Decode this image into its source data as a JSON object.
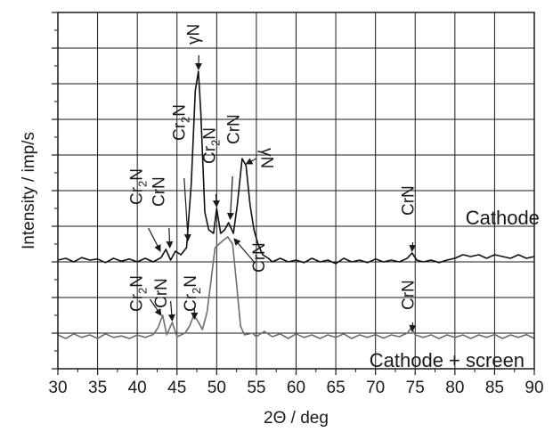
{
  "chart_data": {
    "type": "line",
    "xlabel": "2Θ / deg",
    "ylabel": "Intensity / imp/s",
    "xlim": [
      30,
      90
    ],
    "ylim": [
      0,
      10
    ],
    "x_ticks": [
      "30",
      "35",
      "40",
      "45",
      "50",
      "55",
      "60",
      "65",
      "70",
      "75",
      "80",
      "85",
      "90"
    ],
    "grid": true,
    "y_tick_labels_shown": false,
    "series": [
      {
        "name": "Cathode",
        "color": "#111111",
        "label_at": [
          86,
          4.05
        ],
        "points": [
          [
            30,
            3.05
          ],
          [
            31,
            3.1
          ],
          [
            32,
            3.0
          ],
          [
            33,
            3.12
          ],
          [
            34,
            3.05
          ],
          [
            35,
            3.08
          ],
          [
            36,
            2.98
          ],
          [
            37,
            3.1
          ],
          [
            38,
            3.02
          ],
          [
            39,
            3.08
          ],
          [
            40,
            3.0
          ],
          [
            41,
            3.1
          ],
          [
            42,
            3.0
          ],
          [
            43,
            3.12
          ],
          [
            43.6,
            3.35
          ],
          [
            44.2,
            3.05
          ],
          [
            44.8,
            3.3
          ],
          [
            45.5,
            3.2
          ],
          [
            46.2,
            3.4
          ],
          [
            46.8,
            5.2
          ],
          [
            47.3,
            7.8
          ],
          [
            47.7,
            8.35
          ],
          [
            48.0,
            7.2
          ],
          [
            48.5,
            4.4
          ],
          [
            49.0,
            3.9
          ],
          [
            49.6,
            3.8
          ],
          [
            50.0,
            4.5
          ],
          [
            50.5,
            3.8
          ],
          [
            51.0,
            3.9
          ],
          [
            51.5,
            4.1
          ],
          [
            52.1,
            3.8
          ],
          [
            52.6,
            4.6
          ],
          [
            53.2,
            5.9
          ],
          [
            53.7,
            5.7
          ],
          [
            54.2,
            4.6
          ],
          [
            54.7,
            3.9
          ],
          [
            55.2,
            3.5
          ],
          [
            55.8,
            3.2
          ],
          [
            56.5,
            3.1
          ],
          [
            57,
            3.0
          ],
          [
            58,
            3.1
          ],
          [
            59,
            3.0
          ],
          [
            60,
            3.05
          ],
          [
            61,
            2.98
          ],
          [
            62,
            3.1
          ],
          [
            63,
            3.0
          ],
          [
            64,
            3.05
          ],
          [
            65,
            2.95
          ],
          [
            66,
            3.1
          ],
          [
            67,
            3.0
          ],
          [
            68,
            3.05
          ],
          [
            69,
            2.98
          ],
          [
            70,
            3.08
          ],
          [
            71,
            3.0
          ],
          [
            72,
            3.05
          ],
          [
            73,
            3.0
          ],
          [
            74,
            3.1
          ],
          [
            74.6,
            3.25
          ],
          [
            75.2,
            3.05
          ],
          [
            76,
            3.0
          ],
          [
            77,
            3.05
          ],
          [
            78,
            2.98
          ],
          [
            79,
            3.05
          ],
          [
            80,
            3.1
          ],
          [
            81,
            3.2
          ],
          [
            82,
            3.15
          ],
          [
            83,
            3.2
          ],
          [
            84,
            3.1
          ],
          [
            85,
            3.2
          ],
          [
            86,
            3.15
          ],
          [
            87,
            3.1
          ],
          [
            88,
            3.2
          ],
          [
            89,
            3.1
          ],
          [
            90,
            3.15
          ]
        ]
      },
      {
        "name": "Cathode + screen",
        "color": "#6e6e6e",
        "label_at": [
          79,
          0.05
        ],
        "points": [
          [
            30,
            0.95
          ],
          [
            31,
            0.85
          ],
          [
            32,
            0.98
          ],
          [
            33,
            0.88
          ],
          [
            34,
            0.95
          ],
          [
            35,
            0.85
          ],
          [
            36,
            0.98
          ],
          [
            37,
            0.88
          ],
          [
            38,
            0.92
          ],
          [
            39,
            0.85
          ],
          [
            40,
            0.95
          ],
          [
            41,
            0.88
          ],
          [
            42,
            0.96
          ],
          [
            42.6,
            1.15
          ],
          [
            43.2,
            1.5
          ],
          [
            43.7,
            0.95
          ],
          [
            44.4,
            1.3
          ],
          [
            45.0,
            0.9
          ],
          [
            46.0,
            1.0
          ],
          [
            46.6,
            1.2
          ],
          [
            47.1,
            1.5
          ],
          [
            47.6,
            1.35
          ],
          [
            48.2,
            1.1
          ],
          [
            48.8,
            1.6
          ],
          [
            49.3,
            2.5
          ],
          [
            49.8,
            3.4
          ],
          [
            50.3,
            3.5
          ],
          [
            50.8,
            3.6
          ],
          [
            51.4,
            3.7
          ],
          [
            52.0,
            3.5
          ],
          [
            52.5,
            2.4
          ],
          [
            53.0,
            1.2
          ],
          [
            53.5,
            0.95
          ],
          [
            54.5,
            1.0
          ],
          [
            55,
            0.9
          ],
          [
            56,
            1.05
          ],
          [
            57,
            0.9
          ],
          [
            58,
            0.98
          ],
          [
            59,
            0.85
          ],
          [
            60,
            0.98
          ],
          [
            61,
            0.88
          ],
          [
            62,
            0.95
          ],
          [
            63,
            0.85
          ],
          [
            64,
            0.95
          ],
          [
            65,
            0.88
          ],
          [
            66,
            0.98
          ],
          [
            67,
            0.85
          ],
          [
            68,
            0.95
          ],
          [
            69,
            0.88
          ],
          [
            70,
            0.96
          ],
          [
            71,
            0.86
          ],
          [
            72,
            0.95
          ],
          [
            73,
            0.9
          ],
          [
            74,
            1.0
          ],
          [
            74.5,
            1.15
          ],
          [
            75.0,
            0.95
          ],
          [
            76,
            0.88
          ],
          [
            77,
            0.95
          ],
          [
            78,
            0.85
          ],
          [
            79,
            0.95
          ],
          [
            80,
            0.88
          ],
          [
            81,
            0.95
          ],
          [
            82,
            0.85
          ],
          [
            83,
            0.95
          ],
          [
            84,
            0.88
          ],
          [
            85,
            0.96
          ],
          [
            86,
            0.85
          ],
          [
            87,
            0.95
          ],
          [
            88,
            0.88
          ],
          [
            89,
            0.96
          ],
          [
            90,
            0.85
          ]
        ]
      }
    ],
    "annotations": [
      {
        "label": "Cr₂N",
        "main": "Cr",
        "sub": "2",
        "tail": "N",
        "text_at": [
          40.6,
          4.6
        ],
        "arrow_from": [
          41.4,
          3.95
        ],
        "arrow_to": [
          42.9,
          3.3
        ],
        "rotate": true
      },
      {
        "label": "CrN",
        "main": "CrN",
        "text_at": [
          43.4,
          4.55
        ],
        "arrow_from": [
          44.0,
          3.95
        ],
        "arrow_to": [
          44.1,
          3.4
        ],
        "rotate": true
      },
      {
        "label": "Cr₂N",
        "main": "Cr",
        "sub": "2",
        "tail": "N",
        "text_at": [
          46.0,
          6.4
        ],
        "arrow_from": [
          45.9,
          5.35
        ],
        "arrow_to": [
          46.4,
          3.6
        ],
        "rotate": true
      },
      {
        "label": "γN",
        "main": "γN",
        "text_at": [
          47.8,
          9.1
        ],
        "arrow_from": [
          47.75,
          8.8
        ],
        "arrow_to": [
          47.7,
          8.4
        ],
        "rotate": true
      },
      {
        "label": "Cr₂N",
        "main": "Cr",
        "sub": "2",
        "tail": "N",
        "text_at": [
          49.8,
          5.75
        ],
        "arrow_from": [
          49.9,
          4.9
        ],
        "arrow_to": [
          50.0,
          4.55
        ],
        "rotate": true
      },
      {
        "label": "CrN",
        "main": "CrN",
        "text_at": [
          52.8,
          6.3
        ],
        "arrow_from": [
          52.0,
          5.4
        ],
        "arrow_to": [
          51.7,
          4.2
        ],
        "rotate": true
      },
      {
        "label": "γN",
        "main": "γN",
        "text_at": [
          55.6,
          6.2
        ],
        "arrow_from": [
          55.0,
          5.9
        ],
        "arrow_to": [
          53.7,
          5.75
        ],
        "rotate": true,
        "flip": true
      },
      {
        "label": "CrN",
        "main": "CrN",
        "text_at": [
          74.8,
          4.3
        ],
        "arrow_from": [
          74.7,
          3.55
        ],
        "arrow_to": [
          74.6,
          3.3
        ],
        "rotate": true
      },
      {
        "label": "Cr₂N",
        "main": "Cr",
        "sub": "2",
        "tail": "N",
        "text_at": [
          40.6,
          1.6
        ],
        "arrow_from": [
          41.6,
          1.95
        ],
        "arrow_to": [
          43.0,
          1.5
        ],
        "rotate": true
      },
      {
        "label": "CrN",
        "main": "CrN",
        "text_at": [
          43.7,
          1.7
        ],
        "arrow_from": [
          44.2,
          1.9
        ],
        "arrow_to": [
          44.4,
          1.35
        ],
        "rotate": true
      },
      {
        "label": "Cr₂N",
        "main": "Cr",
        "sub": "2",
        "tail": "N",
        "text_at": [
          47.4,
          1.6
        ],
        "arrow_from": [
          47.2,
          1.7
        ],
        "arrow_to": [
          47.2,
          1.4
        ],
        "rotate": true
      },
      {
        "label": "CrN",
        "main": "CrN",
        "text_at": [
          56.0,
          2.7
        ],
        "arrow_from": [
          54.7,
          3.0
        ],
        "arrow_to": [
          52.2,
          3.65
        ],
        "rotate": true
      },
      {
        "label": "CrN",
        "main": "CrN",
        "text_at": [
          74.8,
          1.65
        ],
        "arrow_from": [
          74.7,
          1.3
        ],
        "arrow_to": [
          74.6,
          1.05
        ],
        "rotate": true
      }
    ]
  }
}
